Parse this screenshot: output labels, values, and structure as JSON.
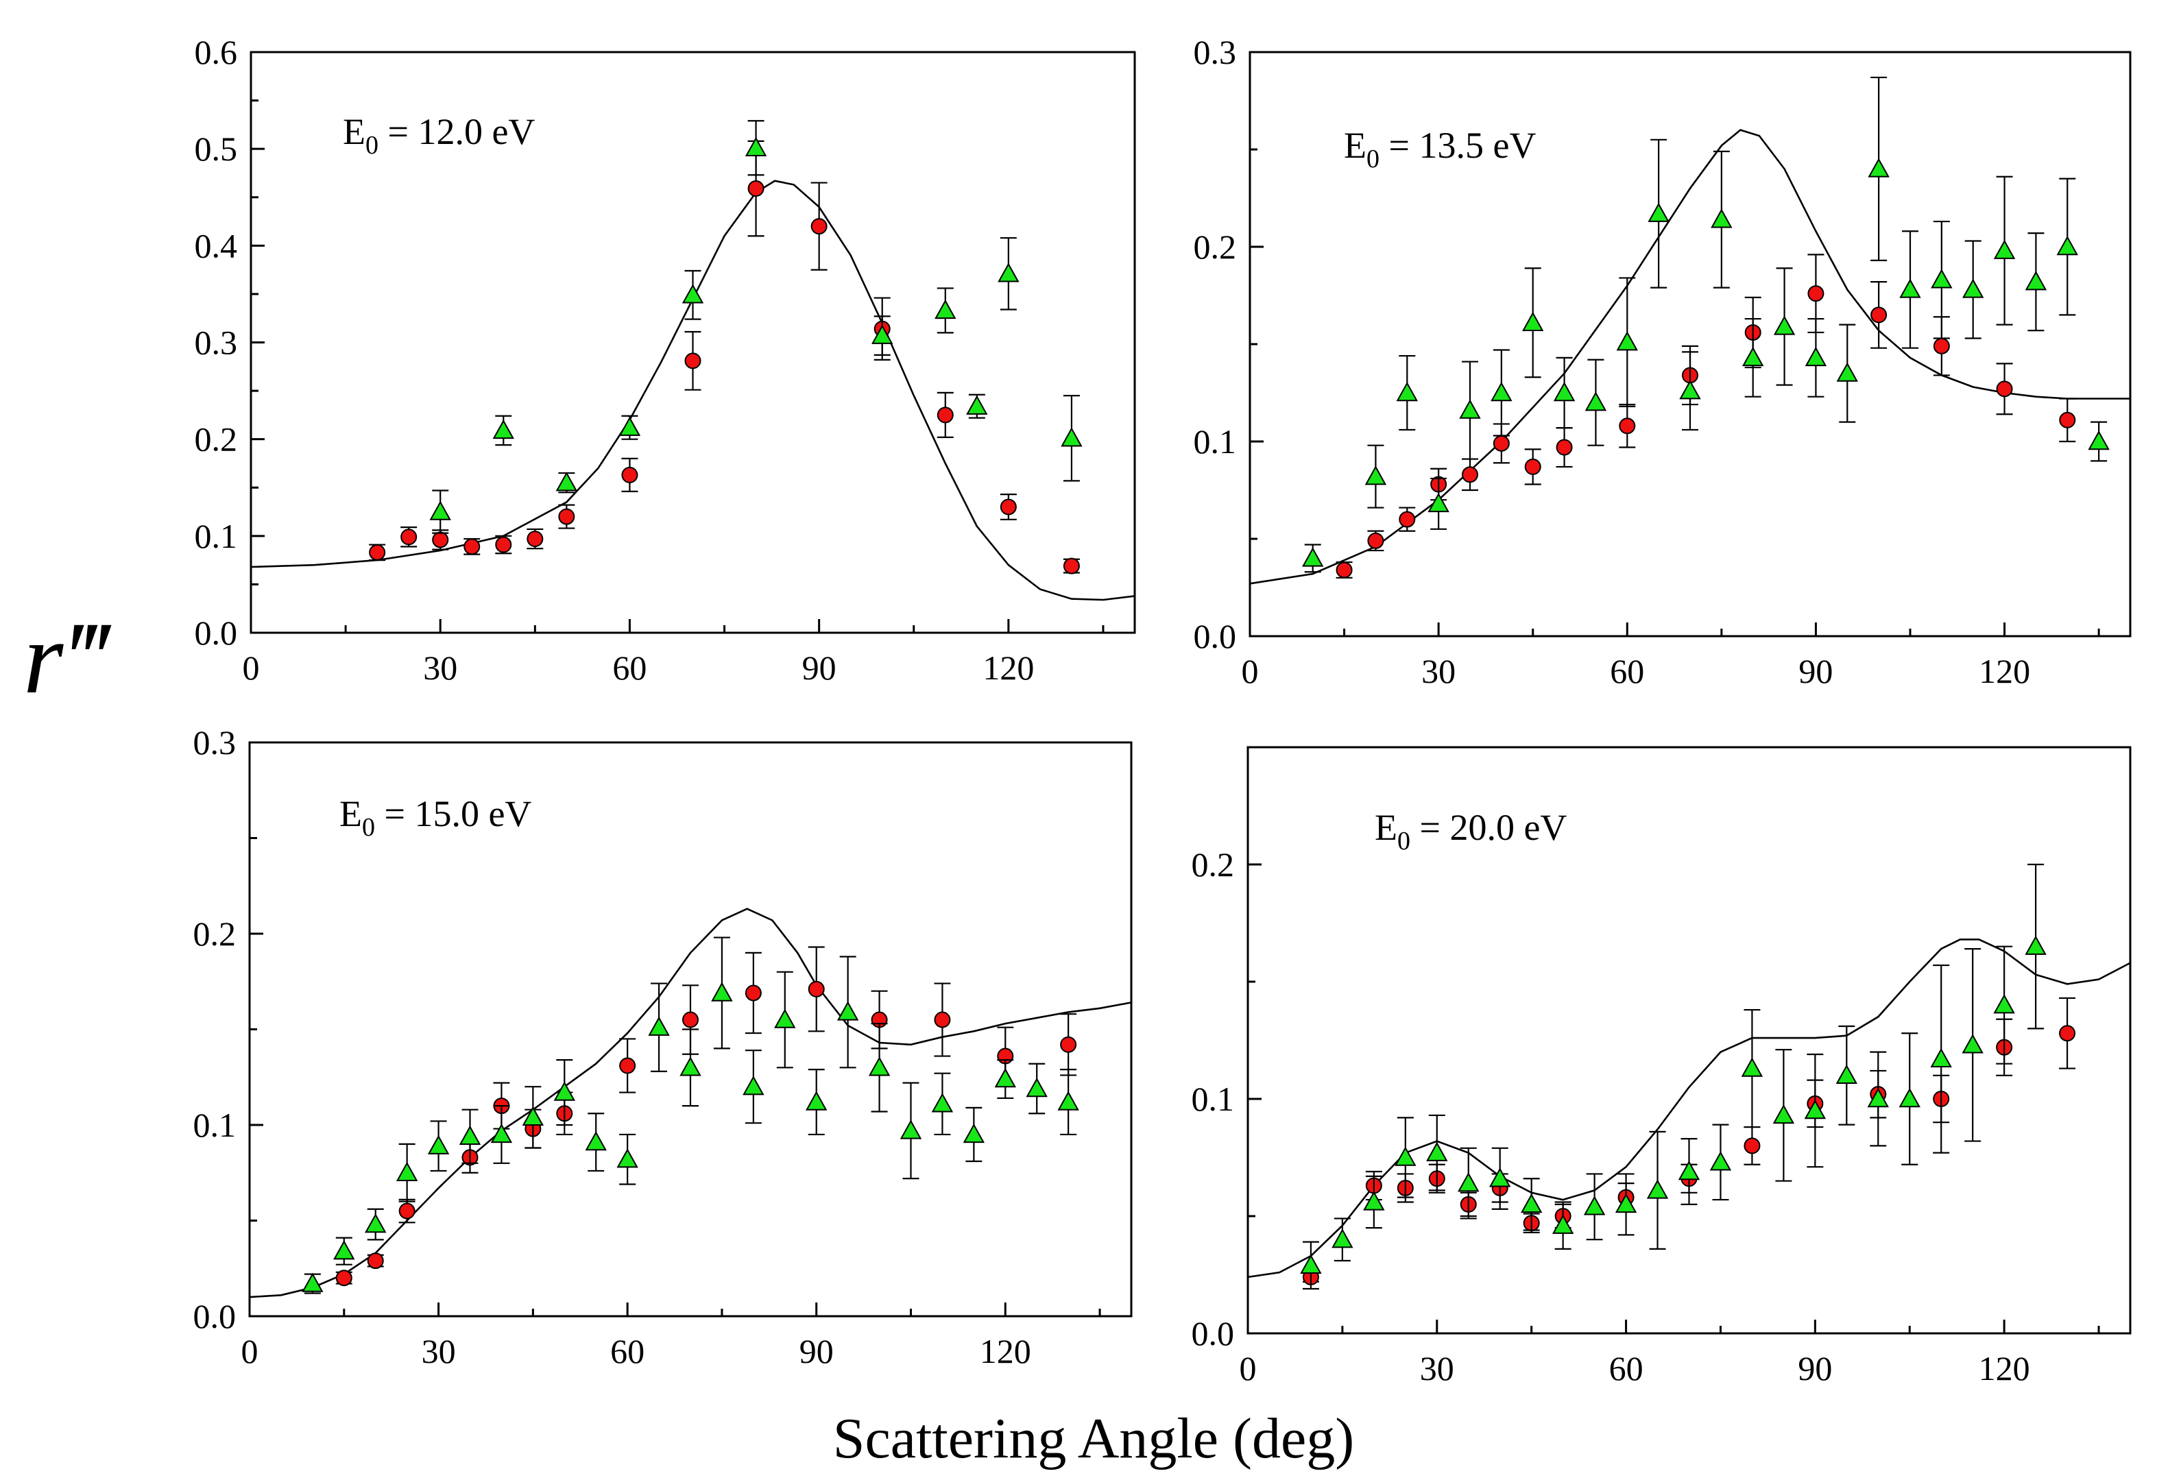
{
  "figure": {
    "ylabel": "r‴",
    "xlabel": "Scattering Angle (deg)",
    "colors": {
      "red": "#ee1111",
      "green": "#19e619",
      "axis": "#000000"
    }
  },
  "chart_data": [
    {
      "type": "scatter",
      "panel": "top-left",
      "label_prefix": "E",
      "label_sub": "0",
      "label_suffix": " = 12.0 eV",
      "xlim": [
        0,
        140
      ],
      "ylim": [
        0,
        0.6
      ],
      "xticks": [
        0,
        30,
        60,
        90,
        120
      ],
      "yticks": [
        0,
        0.1,
        0.2,
        0.3,
        0.4,
        0.5,
        0.6
      ],
      "yticklabels": [
        "0.0",
        "0.1",
        "0.2",
        "0.3",
        "0.4",
        "0.5",
        "0.6"
      ],
      "curve": {
        "x": [
          0,
          10,
          20,
          30,
          40,
          50,
          55,
          60,
          65,
          70,
          75,
          80,
          83,
          86,
          90,
          95,
          100,
          105,
          110,
          115,
          120,
          125,
          130,
          135,
          140
        ],
        "y": [
          0.068,
          0.07,
          0.075,
          0.085,
          0.1,
          0.135,
          0.17,
          0.22,
          0.28,
          0.345,
          0.41,
          0.455,
          0.467,
          0.463,
          0.44,
          0.39,
          0.32,
          0.245,
          0.175,
          0.11,
          0.07,
          0.045,
          0.035,
          0.034,
          0.038
        ]
      },
      "series": [
        {
          "name": "red circles",
          "marker": "circle",
          "color": "#ee1111",
          "x": [
            20,
            25,
            30,
            35,
            40,
            45,
            50,
            60,
            70,
            80,
            90,
            100,
            110,
            120,
            130
          ],
          "y": [
            0.083,
            0.099,
            0.096,
            0.089,
            0.091,
            0.097,
            0.12,
            0.163,
            0.281,
            0.459,
            0.42,
            0.314,
            0.225,
            0.13,
            0.069
          ],
          "err": [
            0.008,
            0.01,
            0.01,
            0.008,
            0.009,
            0.01,
            0.012,
            0.017,
            0.03,
            0.049,
            0.045,
            0.032,
            0.023,
            0.013,
            0.007
          ]
        },
        {
          "name": "green triangles",
          "marker": "triangle",
          "color": "#19e619",
          "x": [
            30,
            40,
            50,
            60,
            70,
            80,
            100,
            110,
            115,
            120,
            130
          ],
          "y": [
            0.125,
            0.209,
            0.155,
            0.212,
            0.349,
            0.501,
            0.307,
            0.333,
            0.234,
            0.371,
            0.201
          ],
          "err": [
            0.022,
            0.015,
            0.01,
            0.012,
            0.025,
            0.028,
            0.02,
            0.023,
            0.012,
            0.037,
            0.044
          ]
        }
      ]
    },
    {
      "type": "scatter",
      "panel": "top-right",
      "label_prefix": "E",
      "label_sub": "0",
      "label_suffix": " = 13.5 eV",
      "xlim": [
        0,
        140
      ],
      "ylim": [
        0,
        0.3
      ],
      "xticks": [
        0,
        30,
        60,
        90,
        120
      ],
      "yticks": [
        0,
        0.1,
        0.2,
        0.3
      ],
      "yticklabels": [
        "0.0",
        "0.1",
        "0.2",
        "0.3"
      ],
      "curve": {
        "x": [
          0,
          10,
          20,
          30,
          40,
          50,
          60,
          65,
          70,
          75,
          78,
          81,
          85,
          90,
          95,
          100,
          105,
          110,
          115,
          120,
          125,
          130,
          135,
          140
        ],
        "y": [
          0.027,
          0.032,
          0.046,
          0.07,
          0.1,
          0.135,
          0.18,
          0.205,
          0.23,
          0.252,
          0.26,
          0.257,
          0.24,
          0.208,
          0.178,
          0.157,
          0.143,
          0.134,
          0.128,
          0.125,
          0.123,
          0.122,
          0.122,
          0.122
        ]
      },
      "series": [
        {
          "name": "red circles",
          "marker": "circle",
          "color": "#ee1111",
          "x": [
            15,
            20,
            25,
            30,
            35,
            40,
            45,
            50,
            60,
            70,
            80,
            90,
            100,
            110,
            120,
            130
          ],
          "y": [
            0.034,
            0.049,
            0.06,
            0.078,
            0.083,
            0.099,
            0.087,
            0.097,
            0.108,
            0.134,
            0.156,
            0.176,
            0.165,
            0.149,
            0.127,
            0.111
          ],
          "err": [
            0.004,
            0.005,
            0.006,
            0.008,
            0.008,
            0.01,
            0.009,
            0.01,
            0.011,
            0.015,
            0.018,
            0.02,
            0.017,
            0.015,
            0.013,
            0.011
          ]
        },
        {
          "name": "green triangles",
          "marker": "triangle",
          "color": "#19e619",
          "x": [
            10,
            20,
            25,
            30,
            35,
            40,
            45,
            50,
            55,
            60,
            65,
            70,
            75,
            80,
            85,
            90,
            95,
            100,
            105,
            110,
            115,
            120,
            125,
            130,
            135
          ],
          "y": [
            0.04,
            0.082,
            0.125,
            0.068,
            0.116,
            0.125,
            0.161,
            0.125,
            0.12,
            0.151,
            0.217,
            0.126,
            0.214,
            0.143,
            0.159,
            0.143,
            0.135,
            0.24,
            0.178,
            0.183,
            0.178,
            0.198,
            0.182,
            0.2,
            0.1
          ],
          "err": [
            0.007,
            0.016,
            0.019,
            0.013,
            0.025,
            0.022,
            0.028,
            0.018,
            0.022,
            0.033,
            0.038,
            0.02,
            0.035,
            0.02,
            0.03,
            0.02,
            0.025,
            0.047,
            0.03,
            0.03,
            0.025,
            0.038,
            0.025,
            0.035,
            0.01
          ]
        }
      ]
    },
    {
      "type": "scatter",
      "panel": "bottom-left",
      "label_prefix": "E",
      "label_sub": "0",
      "label_suffix": " = 15.0 eV",
      "xlim": [
        0,
        140
      ],
      "ylim": [
        0,
        0.3
      ],
      "xticks": [
        0,
        30,
        60,
        90,
        120
      ],
      "yticks": [
        0,
        0.1,
        0.2,
        0.3
      ],
      "yticklabels": [
        "0.0",
        "0.1",
        "0.2",
        "0.3"
      ],
      "curve": {
        "x": [
          0,
          5,
          10,
          15,
          20,
          25,
          30,
          35,
          40,
          45,
          50,
          55,
          60,
          65,
          70,
          75,
          79,
          83,
          87,
          90,
          95,
          100,
          105,
          110,
          115,
          120,
          125,
          130,
          135,
          140
        ],
        "y": [
          0.01,
          0.011,
          0.015,
          0.022,
          0.033,
          0.05,
          0.067,
          0.083,
          0.097,
          0.108,
          0.12,
          0.132,
          0.148,
          0.167,
          0.19,
          0.207,
          0.213,
          0.207,
          0.19,
          0.173,
          0.152,
          0.143,
          0.142,
          0.146,
          0.149,
          0.153,
          0.156,
          0.159,
          0.161,
          0.164
        ]
      },
      "series": [
        {
          "name": "red circles",
          "marker": "circle",
          "color": "#ee1111",
          "x": [
            15,
            20,
            25,
            35,
            40,
            45,
            50,
            60,
            70,
            80,
            90,
            100,
            110,
            120,
            130
          ],
          "y": [
            0.02,
            0.029,
            0.055,
            0.083,
            0.11,
            0.098,
            0.106,
            0.131,
            0.155,
            0.169,
            0.171,
            0.155,
            0.155,
            0.136,
            0.142
          ],
          "err": [
            0.003,
            0.003,
            0.006,
            0.008,
            0.012,
            0.01,
            0.011,
            0.014,
            0.018,
            0.021,
            0.022,
            0.015,
            0.019,
            0.015,
            0.016
          ]
        },
        {
          "name": "green triangles",
          "marker": "triangle",
          "color": "#19e619",
          "x": [
            10,
            15,
            20,
            25,
            30,
            35,
            40,
            45,
            50,
            55,
            60,
            65,
            70,
            75,
            80,
            85,
            90,
            95,
            100,
            105,
            110,
            115,
            120,
            125,
            130
          ],
          "y": [
            0.017,
            0.034,
            0.048,
            0.075,
            0.089,
            0.094,
            0.095,
            0.104,
            0.117,
            0.091,
            0.082,
            0.151,
            0.13,
            0.169,
            0.12,
            0.155,
            0.112,
            0.159,
            0.13,
            0.097,
            0.111,
            0.095,
            0.124,
            0.119,
            0.112
          ],
          "err": [
            0.005,
            0.007,
            0.008,
            0.015,
            0.013,
            0.014,
            0.015,
            0.016,
            0.017,
            0.015,
            0.013,
            0.023,
            0.02,
            0.029,
            0.019,
            0.025,
            0.017,
            0.029,
            0.023,
            0.025,
            0.016,
            0.014,
            0.01,
            0.013,
            0.017
          ]
        }
      ]
    },
    {
      "type": "scatter",
      "panel": "bottom-right",
      "label_prefix": "E",
      "label_sub": "0",
      "label_suffix": " = 20.0 eV",
      "xlim": [
        0,
        140
      ],
      "ylim": [
        0,
        0.25
      ],
      "xticks": [
        0,
        30,
        60,
        90,
        120
      ],
      "yticks": [
        0,
        0.1,
        0.2
      ],
      "yticklabels": [
        "0.0",
        "0.1",
        "0.2"
      ],
      "curve": {
        "x": [
          0,
          5,
          10,
          15,
          20,
          25,
          30,
          35,
          40,
          45,
          50,
          55,
          60,
          65,
          70,
          75,
          80,
          85,
          90,
          95,
          100,
          105,
          110,
          113,
          116,
          120,
          125,
          130,
          135,
          140
        ],
        "y": [
          0.024,
          0.026,
          0.033,
          0.046,
          0.063,
          0.077,
          0.082,
          0.077,
          0.067,
          0.06,
          0.057,
          0.061,
          0.071,
          0.087,
          0.105,
          0.12,
          0.126,
          0.126,
          0.126,
          0.127,
          0.135,
          0.15,
          0.164,
          0.168,
          0.168,
          0.163,
          0.153,
          0.149,
          0.151,
          0.158
        ]
      },
      "series": [
        {
          "name": "red circles",
          "marker": "circle",
          "color": "#ee1111",
          "x": [
            10,
            20,
            25,
            30,
            35,
            40,
            45,
            50,
            60,
            70,
            80,
            90,
            100,
            110,
            120,
            130
          ],
          "y": [
            0.024,
            0.063,
            0.062,
            0.066,
            0.055,
            0.062,
            0.047,
            0.05,
            0.058,
            0.066,
            0.08,
            0.098,
            0.102,
            0.1,
            0.122,
            0.128
          ],
          "err": [
            0.002,
            0.006,
            0.006,
            0.006,
            0.005,
            0.006,
            0.004,
            0.005,
            0.006,
            0.006,
            0.008,
            0.01,
            0.01,
            0.01,
            0.012,
            0.015
          ]
        },
        {
          "name": "green triangles",
          "marker": "triangle",
          "color": "#19e619",
          "x": [
            10,
            15,
            20,
            25,
            30,
            35,
            40,
            45,
            50,
            55,
            60,
            65,
            70,
            75,
            80,
            85,
            90,
            95,
            100,
            105,
            110,
            115,
            120,
            125
          ],
          "y": [
            0.029,
            0.04,
            0.056,
            0.075,
            0.077,
            0.064,
            0.066,
            0.055,
            0.046,
            0.054,
            0.055,
            0.061,
            0.069,
            0.073,
            0.113,
            0.093,
            0.095,
            0.11,
            0.1,
            0.1,
            0.117,
            0.123,
            0.14,
            0.165
          ],
          "err": [
            0.01,
            0.009,
            0.011,
            0.017,
            0.016,
            0.015,
            0.013,
            0.011,
            0.01,
            0.014,
            0.013,
            0.025,
            0.014,
            0.016,
            0.025,
            0.028,
            0.024,
            0.021,
            0.02,
            0.028,
            0.04,
            0.041,
            0.025,
            0.035
          ]
        }
      ]
    }
  ]
}
